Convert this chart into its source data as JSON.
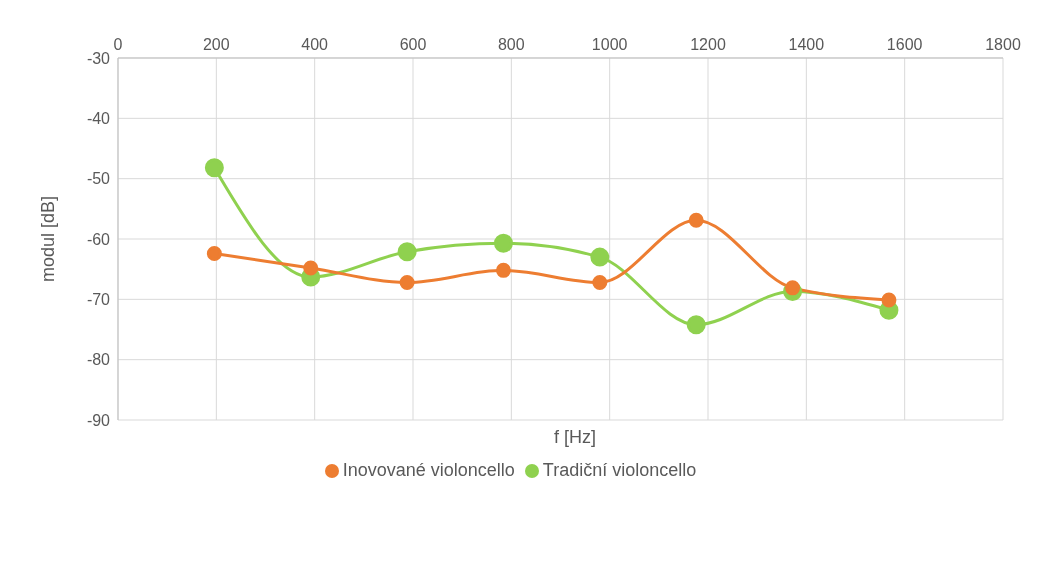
{
  "chart_data": {
    "type": "line",
    "xlabel": "f [Hz]",
    "ylabel": "modul [dB]",
    "x": [
      196,
      392,
      588,
      784,
      980,
      1176,
      1372,
      1568
    ],
    "series": [
      {
        "name": "Tradiční violoncello",
        "color": "#8fd14f",
        "values": [
          -48.2,
          -66.3,
          -62.1,
          -60.7,
          -63.0,
          -74.2,
          -68.7,
          -71.8
        ]
      },
      {
        "name": "Inovované violoncello",
        "color": "#ed7d31",
        "values": [
          -62.4,
          -64.8,
          -67.2,
          -65.2,
          -67.2,
          -56.9,
          -68.1,
          -70.1
        ]
      }
    ],
    "xlim": [
      0,
      1800
    ],
    "xticks": [
      0,
      200,
      400,
      600,
      800,
      1000,
      1200,
      1400,
      1600,
      1800
    ],
    "ylim": [
      -90,
      -30
    ],
    "yticks": [
      -90,
      -80,
      -70,
      -60,
      -50,
      -40,
      -30
    ],
    "grid": true,
    "legend": "bottom",
    "marker": "circle",
    "line_style": "solid"
  }
}
